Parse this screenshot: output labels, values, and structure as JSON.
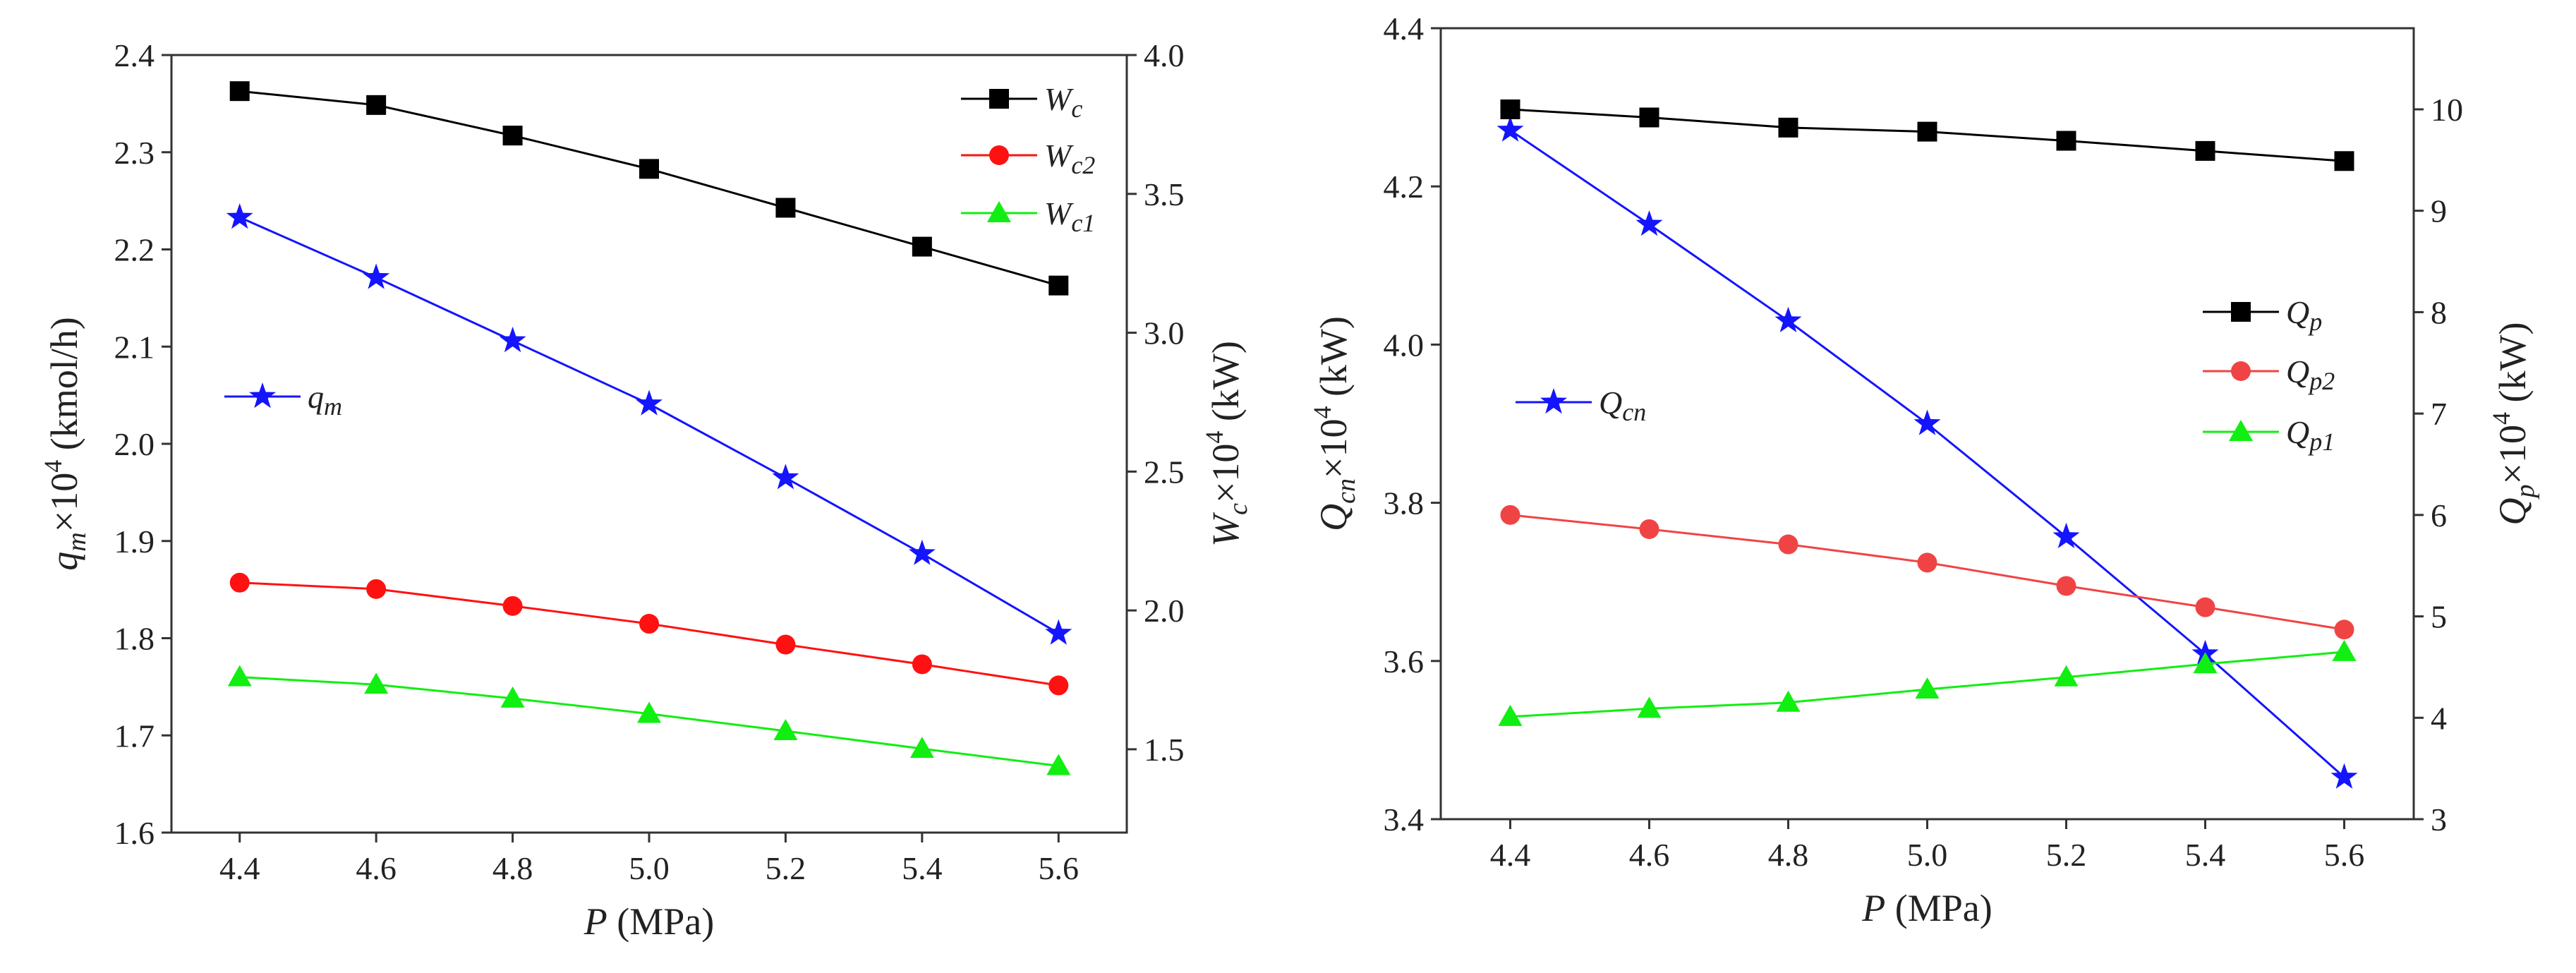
{
  "chart_data": [
    {
      "type": "line",
      "x_label": {
        "main": "P",
        "unit": " (MPa)"
      },
      "x_ticks": [
        "4.4",
        "4.6",
        "4.8",
        "5.0",
        "5.2",
        "5.4",
        "5.6"
      ],
      "x": [
        4.4,
        4.6,
        4.8,
        5.0,
        5.2,
        5.4,
        5.6
      ],
      "xlim": [
        4.3,
        5.7
      ],
      "left_axis": {
        "label": {
          "main": "q",
          "sub": "m",
          "mid": "×10",
          "sup": "4",
          "unit": " (kmol/h)"
        },
        "ylim": [
          1.6,
          2.4
        ],
        "ticks": [
          "1.6",
          "1.7",
          "1.8",
          "1.9",
          "2.0",
          "2.1",
          "2.2",
          "2.3",
          "2.4"
        ]
      },
      "right_axis": {
        "label": {
          "main": "W",
          "sub": "c",
          "mid": "×10",
          "sup": "4",
          "unit": " (kW)"
        },
        "ylim": [
          1.2,
          4.0
        ],
        "ticks": [
          "1.5",
          "2.0",
          "2.5",
          "3.0",
          "3.5",
          "4.0"
        ]
      },
      "series": [
        {
          "name": "q",
          "name_sub": "m",
          "axis": "left",
          "color": "#1414ff",
          "marker": "star",
          "values": [
            2.233,
            2.171,
            2.106,
            2.041,
            1.965,
            1.887,
            1.805
          ]
        },
        {
          "name": "W",
          "name_sub": "c",
          "axis": "right",
          "color": "#000000",
          "marker": "square",
          "values": [
            3.87,
            3.82,
            3.71,
            3.59,
            3.45,
            3.31,
            3.17
          ]
        },
        {
          "name": "W",
          "name_sub": "c2",
          "axis": "right",
          "color": "#ff1111",
          "marker": "circle",
          "values": [
            2.1,
            2.077,
            2.016,
            1.952,
            1.877,
            1.806,
            1.73
          ]
        },
        {
          "name": "W",
          "name_sub": "c1",
          "axis": "right",
          "color": "#11ee11",
          "marker": "triangle",
          "values": [
            1.76,
            1.733,
            1.683,
            1.628,
            1.566,
            1.502,
            1.44
          ]
        }
      ]
    },
    {
      "type": "line",
      "x_label": {
        "main": "P",
        "unit": " (MPa)"
      },
      "x_ticks": [
        "4.4",
        "4.6",
        "4.8",
        "5.0",
        "5.2",
        "5.4",
        "5.6"
      ],
      "x": [
        4.4,
        4.6,
        4.8,
        5.0,
        5.2,
        5.4,
        5.6
      ],
      "xlim": [
        4.3,
        5.7
      ],
      "left_axis": {
        "label": {
          "main": "Q",
          "sub": "cn",
          "mid": "×10",
          "sup": "4",
          "unit": " (kW)"
        },
        "ylim": [
          3.4,
          4.4
        ],
        "ticks": [
          "3.4",
          "3.6",
          "3.8",
          "4.0",
          "4.2",
          "4.4"
        ]
      },
      "right_axis": {
        "label": {
          "main": "Q",
          "sub": "p",
          "mid": "×10",
          "sup": "4",
          "unit": " (kW)"
        },
        "ylim": [
          3.0,
          10.8
        ],
        "ticks": [
          "3",
          "4",
          "5",
          "6",
          "7",
          "8",
          "9",
          "10"
        ]
      },
      "series": [
        {
          "name": "Q",
          "name_sub": "cn",
          "axis": "left",
          "color": "#1414ff",
          "marker": "star",
          "values": [
            4.271,
            4.152,
            4.03,
            3.9,
            3.757,
            3.609,
            3.453
          ]
        },
        {
          "name": "Q",
          "name_sub": "p",
          "axis": "right",
          "color": "#000000",
          "marker": "square",
          "values": [
            10.0,
            9.92,
            9.82,
            9.78,
            9.69,
            9.59,
            9.49
          ]
        },
        {
          "name": "Q",
          "name_sub": "p2",
          "axis": "right",
          "color": "#f04444",
          "marker": "circle",
          "values": [
            6.0,
            5.86,
            5.71,
            5.53,
            5.3,
            5.09,
            4.87
          ]
        },
        {
          "name": "Q",
          "name_sub": "p1",
          "axis": "right",
          "color": "#11ee11",
          "marker": "triangle",
          "values": [
            4.01,
            4.09,
            4.15,
            4.28,
            4.4,
            4.53,
            4.65
          ]
        }
      ]
    }
  ]
}
